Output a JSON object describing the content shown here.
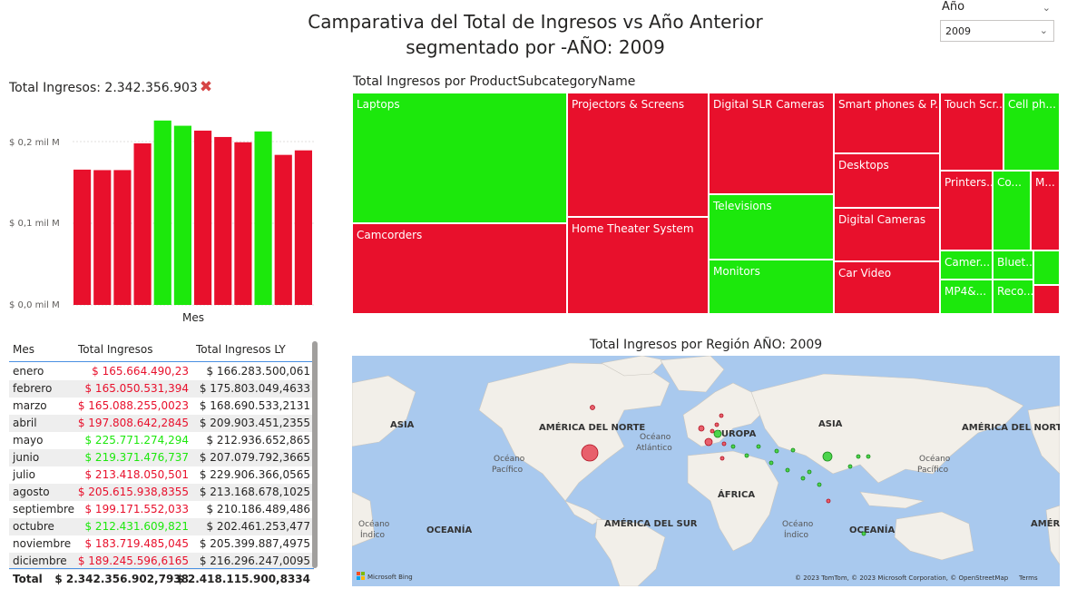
{
  "header": {
    "title_line1": "Camparativa del Total de Ingresos vs Año Anterior",
    "title_line2": "segmentado por -AÑO: 2009"
  },
  "slicer": {
    "label": "Año",
    "value": "2009"
  },
  "kpi": {
    "label": "Total Ingresos: 2.342.356.903",
    "status_icon": "x-mark-icon",
    "status_color": "#d64545"
  },
  "colors": {
    "above": "#1ce80c",
    "below": "#e8102c"
  },
  "bar_chart": {
    "xlabel": "Mes",
    "yticks": [
      "$ 0,2 mil M",
      "$ 0,1 mil M",
      "$ 0,0 mil M"
    ]
  },
  "chart_data": {
    "type": "bar",
    "categories": [
      "enero",
      "febrero",
      "marzo",
      "abril",
      "mayo",
      "junio",
      "julio",
      "agosto",
      "septiembre",
      "octubre",
      "noviembre",
      "diciembre"
    ],
    "series": [
      {
        "values": [
          165664490.23,
          165050531.394,
          165088255.0023,
          197808642.2845,
          225771274.294,
          219371476.737,
          213418050.501,
          205615938.8355,
          199171552.033,
          212431609.821,
          183719485.045,
          189245596.6165
        ]
      }
    ],
    "prior_year": [
      166283500.061,
      175803049.4633,
      168690533.2131,
      209903451.2355,
      212936652.865,
      207079792.3665,
      229906366.0565,
      213168678.1025,
      210186489.486,
      202461253.477,
      205399887.4975,
      216296247.0095
    ],
    "status": [
      "below",
      "below",
      "below",
      "below",
      "above",
      "above",
      "below",
      "below",
      "below",
      "above",
      "below",
      "below"
    ],
    "xlabel": "Mes",
    "ylim": [
      0,
      250000000
    ]
  },
  "table": {
    "headers": [
      "Mes",
      "Total Ingresos",
      "Total Ingresos LY"
    ],
    "rows": [
      {
        "mes": "enero",
        "ingresos": "$ 165.664.490,23",
        "ly": "$ 166.283.500,061",
        "status": "below"
      },
      {
        "mes": "febrero",
        "ingresos": "$ 165.050.531,394",
        "ly": "$ 175.803.049,4633",
        "status": "below"
      },
      {
        "mes": "marzo",
        "ingresos": "$ 165.088.255,0023",
        "ly": "$ 168.690.533,2131",
        "status": "below"
      },
      {
        "mes": "abril",
        "ingresos": "$ 197.808.642,2845",
        "ly": "$ 209.903.451,2355",
        "status": "below"
      },
      {
        "mes": "mayo",
        "ingresos": "$ 225.771.274,294",
        "ly": "$ 212.936.652,865",
        "status": "above"
      },
      {
        "mes": "junio",
        "ingresos": "$ 219.371.476,737",
        "ly": "$ 207.079.792,3665",
        "status": "above"
      },
      {
        "mes": "julio",
        "ingresos": "$ 213.418.050,501",
        "ly": "$ 229.906.366,0565",
        "status": "below"
      },
      {
        "mes": "agosto",
        "ingresos": "$ 205.615.938,8355",
        "ly": "$ 213.168.678,1025",
        "status": "below"
      },
      {
        "mes": "septiembre",
        "ingresos": "$ 199.171.552,033",
        "ly": "$ 210.186.489,486",
        "status": "below"
      },
      {
        "mes": "octubre",
        "ingresos": "$ 212.431.609,821",
        "ly": "$ 202.461.253,477",
        "status": "above"
      },
      {
        "mes": "noviembre",
        "ingresos": "$ 183.719.485,045",
        "ly": "$ 205.399.887,4975",
        "status": "below"
      },
      {
        "mes": "diciembre",
        "ingresos": "$ 189.245.596,6165",
        "ly": "$ 216.296.247,0095",
        "status": "below"
      }
    ],
    "total": {
      "label": "Total",
      "ingresos": "$ 2.342.356.902,7938",
      "ly": "$ 2.418.115.900,8334"
    }
  },
  "treemap": {
    "title": "Total Ingresos por ProductSubcategoryName",
    "tiles": [
      {
        "label": "Laptops",
        "status": "above"
      },
      {
        "label": "Camcorders",
        "status": "below"
      },
      {
        "label": "Projectors & Screens",
        "status": "below"
      },
      {
        "label": "Home Theater System",
        "status": "below"
      },
      {
        "label": "Digital SLR Cameras",
        "status": "below"
      },
      {
        "label": "Televisions",
        "status": "above"
      },
      {
        "label": "Monitors",
        "status": "above"
      },
      {
        "label": "Smart phones & P...",
        "status": "below"
      },
      {
        "label": "Desktops",
        "status": "below"
      },
      {
        "label": "Digital Cameras",
        "status": "below"
      },
      {
        "label": "Car Video",
        "status": "below"
      },
      {
        "label": "Touch Scr...",
        "status": "below"
      },
      {
        "label": "Cell ph...",
        "status": "above"
      },
      {
        "label": "Printers...",
        "status": "below"
      },
      {
        "label": "Co...",
        "status": "above"
      },
      {
        "label": "M...",
        "status": "below"
      },
      {
        "label": "Camer...",
        "status": "above"
      },
      {
        "label": "Bluet...",
        "status": "above"
      },
      {
        "label": "",
        "status": "above"
      },
      {
        "label": "MP4&...",
        "status": "above"
      },
      {
        "label": "Reco...",
        "status": "above"
      },
      {
        "label": "",
        "status": "below"
      }
    ]
  },
  "map": {
    "title": "Total Ingresos por Región AÑO: 2009",
    "labels": {
      "asia_left": "ASIA",
      "america_norte": "AMÉRICA DEL NORTE",
      "europa": "EUROPA",
      "asia": "ASIA",
      "america_norte_right": "AMÉRICA DEL NORTE",
      "africa": "ÁFRICA",
      "america_sur": "AMÉRICA DEL SUR",
      "oceania_left": "OCEANÍA",
      "oceania": "OCEANÍA",
      "america_right": "AMÉRI"
    },
    "ocean_labels": {
      "pac_left_1": "Océano",
      "pac_left_2": "Pacífico",
      "atl_1": "Océano",
      "atl_2": "Atlántico",
      "pac_right_1": "Océano",
      "pac_right_2": "Pacífico",
      "ind_left_1": "Océano",
      "ind_left_2": "Índico",
      "ind_1": "Océano",
      "ind_2": "Índico"
    },
    "logo": "Microsoft Bing",
    "attribution": "© 2023 TomTom, © 2023 Microsoft Corporation, © OpenStreetMap",
    "terms": "Terms"
  }
}
